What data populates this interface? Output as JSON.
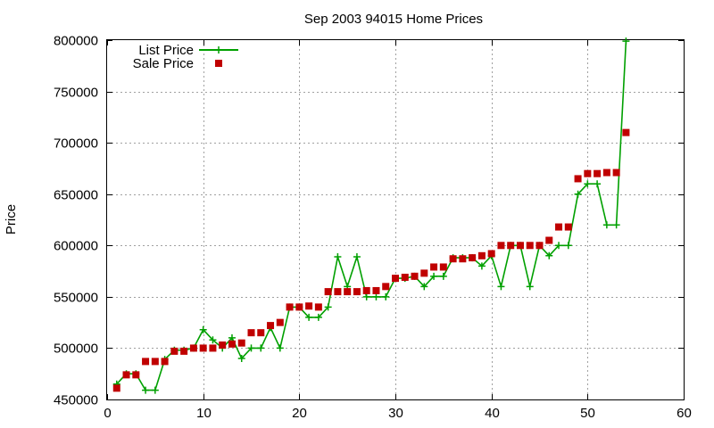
{
  "chart_data": {
    "type": "line",
    "title": "Sep 2003 94015 Home Prices",
    "xlabel": "",
    "ylabel": "Price",
    "xlim": [
      0,
      60
    ],
    "ylim": [
      450000,
      800000
    ],
    "x_ticks": [
      0,
      10,
      20,
      30,
      40,
      50,
      60
    ],
    "y_ticks": [
      450000,
      500000,
      550000,
      600000,
      650000,
      700000,
      750000,
      800000
    ],
    "grid": true,
    "legend_position": "top-left",
    "series": [
      {
        "name": "List Price",
        "style": "line+plus",
        "color": "#00a000",
        "x": [
          1,
          2,
          3,
          4,
          5,
          6,
          7,
          8,
          9,
          10,
          11,
          12,
          13,
          14,
          15,
          16,
          17,
          18,
          19,
          20,
          21,
          22,
          23,
          24,
          25,
          26,
          27,
          28,
          29,
          30,
          31,
          32,
          33,
          34,
          35,
          36,
          37,
          38,
          39,
          40,
          41,
          42,
          43,
          44,
          45,
          46,
          47,
          48,
          49,
          50,
          51,
          52,
          53,
          54
        ],
        "y": [
          465000,
          475000,
          475000,
          459000,
          459000,
          489000,
          498000,
          498000,
          500000,
          518000,
          508000,
          500000,
          510000,
          490000,
          500000,
          500000,
          520000,
          500000,
          540000,
          540000,
          530000,
          530000,
          540000,
          589000,
          560000,
          589000,
          550000,
          550000,
          550000,
          568000,
          568000,
          570000,
          560000,
          570000,
          570000,
          588000,
          588000,
          588000,
          580000,
          590000,
          560000,
          600000,
          600000,
          560000,
          600000,
          590000,
          600000,
          600000,
          650000,
          660000,
          660000,
          620000,
          620000,
          799000
        ]
      },
      {
        "name": "Sale Price",
        "style": "square-points",
        "color": "#c00000",
        "x": [
          1,
          2,
          3,
          4,
          5,
          6,
          7,
          8,
          9,
          10,
          11,
          12,
          13,
          14,
          15,
          16,
          17,
          18,
          19,
          20,
          21,
          22,
          23,
          24,
          25,
          26,
          27,
          28,
          29,
          30,
          31,
          32,
          33,
          34,
          35,
          36,
          37,
          38,
          39,
          40,
          41,
          42,
          43,
          44,
          45,
          46,
          47,
          48,
          49,
          50,
          51,
          52,
          53,
          54
        ],
        "y": [
          461000,
          474000,
          474000,
          487000,
          487000,
          487000,
          497000,
          497000,
          500000,
          500000,
          500000,
          503000,
          504000,
          505000,
          515000,
          515000,
          522000,
          525000,
          540000,
          540000,
          541000,
          540000,
          555000,
          555000,
          555000,
          555000,
          556000,
          556000,
          560000,
          568000,
          569000,
          570000,
          573000,
          579000,
          579000,
          587000,
          587000,
          588000,
          590000,
          592000,
          600000,
          600000,
          600000,
          600000,
          600000,
          605000,
          618000,
          618000,
          665000,
          670000,
          670000,
          671000,
          671000,
          710000
        ]
      }
    ]
  }
}
